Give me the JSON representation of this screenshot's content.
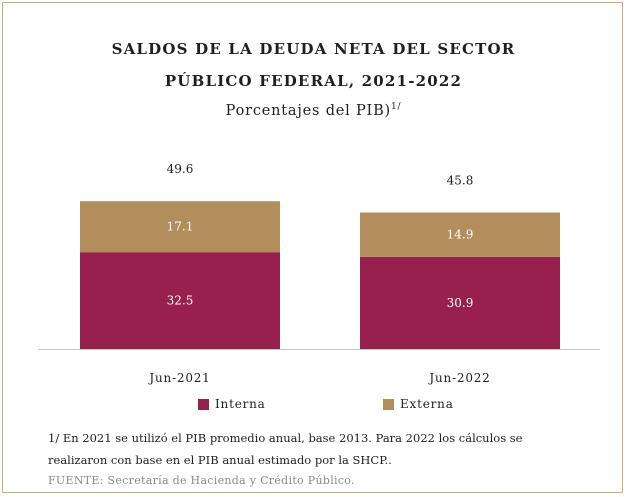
{
  "title_line1": "SALDOS DE LA DEUDA NETA DEL SECTOR",
  "title_line2": "PÚBLICO FEDERAL, 2021-2022",
  "subtitle": "Porcentajes del PIB)",
  "subtitle_sup": "1/",
  "note_line1": "1/ En 2021 se utilizó el PIB promedio anual, base 2013. Para 2022 los cálculos se",
  "note_line2": "realizaron con base en el PIB anual estimado por la SHCP..",
  "source": "FUENTE: Secretaría de Hacienda y Crédito Público.",
  "chart_data": {
    "type": "bar",
    "stacked": true,
    "categories": [
      "Jun-2021",
      "Jun-2022"
    ],
    "series": [
      {
        "name": "Interna",
        "values": [
          32.5,
          30.9
        ],
        "color": "#98204e"
      },
      {
        "name": "Externa",
        "values": [
          17.1,
          14.9
        ],
        "color": "#b38e5d"
      }
    ],
    "totals": [
      49.6,
      45.8
    ],
    "ylim": [
      0,
      55
    ],
    "legend_position": "bottom",
    "grid": false
  }
}
